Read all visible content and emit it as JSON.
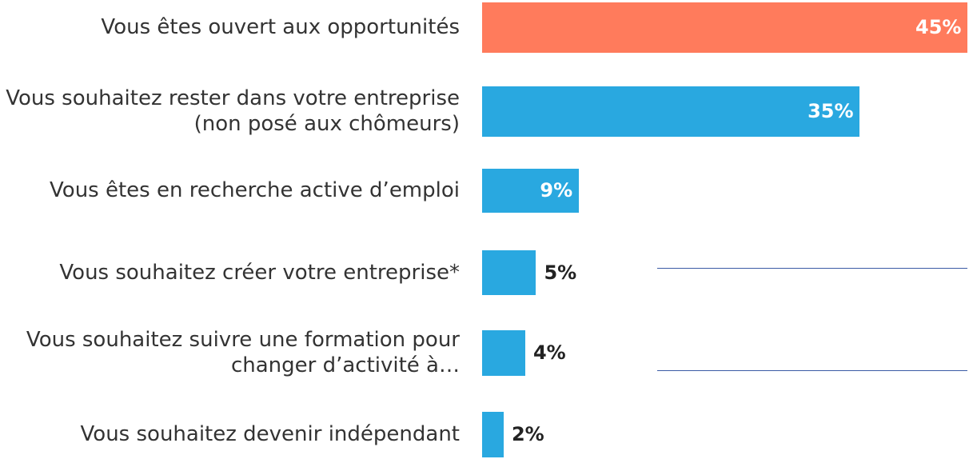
{
  "chart_data": {
    "type": "bar",
    "orientation": "horizontal",
    "categories": [
      "Vous êtes ouvert aux opportunités",
      "Vous souhaitez rester dans votre entreprise (non posé aux chômeurs)",
      "Vous êtes en recherche active d’emploi",
      "Vous souhaitez créer votre entreprise*",
      "Vous souhaitez suivre une formation pour changer d’activité à…",
      "Vous souhaitez devenir indépendant"
    ],
    "values": [
      45,
      35,
      9,
      5,
      4,
      2
    ],
    "value_labels": [
      "45%",
      "35%",
      "9%",
      "5%",
      "4%",
      "2%"
    ],
    "colors": [
      "#ff7b5c",
      "#29a8e0",
      "#29a8e0",
      "#29a8e0",
      "#29a8e0",
      "#29a8e0"
    ],
    "xlim": [
      0,
      45
    ]
  }
}
